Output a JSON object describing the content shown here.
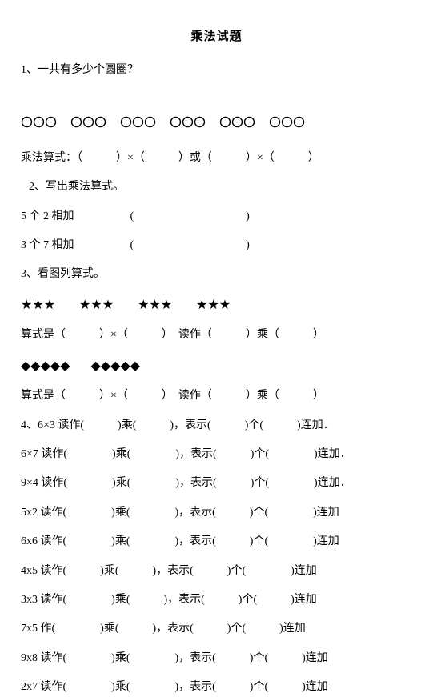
{
  "title": "乘法试题",
  "q1": {
    "label": "1、一共有多少个圆圈？",
    "circle_groups": 6,
    "circles_per_group": 3,
    "expr_line": "乘法算式：（　　　）×（　　　）或（　　　）×（　　　）"
  },
  "q2": {
    "label": "2、写出乘法算式。",
    "a": "5 个 2 相加　　　　　(　　　　　　　　　　)",
    "b": "3 个 7 相加　　　　　(　　　　　　　　　　)"
  },
  "q3": {
    "label": "3、看图列算式。",
    "stars_groups": 4,
    "stars_per_group": 3,
    "stars_expr": "算式是（　　　）×（　　　）　读作（　　　）乘（　　　）",
    "diamonds_groups": 2,
    "diamonds_per_group": 5,
    "diamonds_expr": "算式是（　　　）×（　　　）　读作（　　　）乘（　　　）"
  },
  "q4": {
    "first": "4、6×3 读作(　　　)乘(　　　)，表示(　　　)个(　　　)连加．",
    "rows": [
      "6×7 读作(　　　　)乘(　　　　)，表示(　　　)个(　　　　)连加．",
      "9×4 读作(　　　　)乘(　　　　)，表示(　　　)个(　　　　)连加．",
      "5x2 读作(　　　　)乘(　　　　)，表示(　　　)个(　　　　)连加",
      "6x6 读作(　　　　)乘(　　　　)，表示(　　　)个(　　　　)连加",
      "4x5 读作(　　　)乘(　　　)，表示(　　　)个(　　　　)连加",
      "3x3 读作(　　　　)乘(　　　)，表示(　　　)个(　　　)连加",
      "7x5 作(　　　　)乘(　　　)，表示(　　　)个(　　　)连加",
      "9x8 读作(　　　　)乘(　　　　)，表示(　　　)个(　　　)连加",
      "2x7 读作(　　　　)乘(　　　　)，表示(　　　)个(　　　)连加"
    ]
  },
  "symbols": {
    "circle_svg_stroke": "#000000",
    "star": "★",
    "diamond": "◆"
  }
}
